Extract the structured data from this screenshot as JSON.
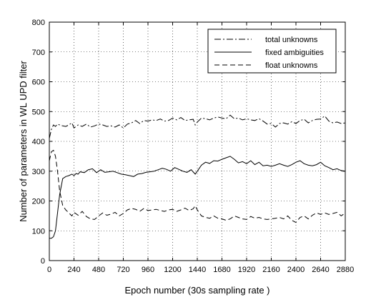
{
  "chart_data": {
    "type": "line",
    "xlabel": "Epoch number (30s sampling rate )",
    "ylabel": "Number of parameters in WL UPD filter",
    "xlim": [
      0,
      2880
    ],
    "ylim": [
      0,
      800
    ],
    "xticks": [
      0,
      240,
      480,
      720,
      960,
      1200,
      1440,
      1680,
      1920,
      2160,
      2400,
      2640,
      2880
    ],
    "yticks": [
      0,
      100,
      200,
      300,
      400,
      500,
      600,
      700,
      800
    ],
    "grid": true,
    "legend_position": "top-right",
    "series": [
      {
        "name": "total unknowns",
        "style": "dashdot",
        "color": "#000000",
        "x": [
          0,
          20,
          40,
          60,
          80,
          100,
          130,
          160,
          190,
          220,
          240,
          280,
          320,
          360,
          400,
          440,
          480,
          520,
          560,
          600,
          640,
          680,
          720,
          760,
          800,
          840,
          880,
          920,
          960,
          1000,
          1040,
          1080,
          1120,
          1160,
          1200,
          1240,
          1280,
          1320,
          1360,
          1400,
          1420,
          1440,
          1480,
          1520,
          1560,
          1600,
          1640,
          1680,
          1720,
          1760,
          1800,
          1840,
          1880,
          1920,
          1960,
          2000,
          2040,
          2080,
          2120,
          2160,
          2200,
          2240,
          2280,
          2320,
          2360,
          2400,
          2440,
          2480,
          2520,
          2560,
          2600,
          2640,
          2680,
          2720,
          2760,
          2800,
          2840,
          2880
        ],
        "y": [
          410,
          440,
          455,
          450,
          458,
          455,
          452,
          450,
          455,
          462,
          445,
          455,
          450,
          458,
          448,
          452,
          458,
          455,
          450,
          452,
          448,
          455,
          445,
          458,
          462,
          470,
          460,
          470,
          468,
          472,
          470,
          475,
          468,
          470,
          478,
          472,
          480,
          470,
          472,
          474,
          455,
          465,
          478,
          476,
          472,
          478,
          482,
          478,
          476,
          488,
          476,
          478,
          472,
          476,
          472,
          470,
          476,
          468,
          458,
          460,
          448,
          460,
          462,
          458,
          466,
          460,
          470,
          474,
          462,
          470,
          474,
          475,
          485,
          468,
          462,
          465,
          460,
          462
        ]
      },
      {
        "name": "fixed ambiguities",
        "style": "solid",
        "color": "#000000",
        "x": [
          0,
          20,
          40,
          60,
          80,
          100,
          130,
          160,
          190,
          220,
          240,
          260,
          280,
          300,
          340,
          380,
          420,
          460,
          500,
          540,
          580,
          620,
          660,
          700,
          740,
          780,
          820,
          860,
          900,
          940,
          980,
          1020,
          1060,
          1100,
          1140,
          1180,
          1220,
          1260,
          1300,
          1340,
          1380,
          1420,
          1440,
          1480,
          1520,
          1560,
          1600,
          1640,
          1680,
          1720,
          1760,
          1800,
          1840,
          1880,
          1920,
          1960,
          2000,
          2040,
          2080,
          2120,
          2160,
          2200,
          2240,
          2280,
          2320,
          2360,
          2400,
          2440,
          2480,
          2520,
          2560,
          2600,
          2640,
          2680,
          2720,
          2760,
          2800,
          2840,
          2880
        ],
        "y": [
          75,
          75,
          80,
          100,
          160,
          220,
          275,
          282,
          285,
          290,
          285,
          292,
          290,
          298,
          295,
          305,
          308,
          295,
          305,
          296,
          298,
          300,
          295,
          290,
          288,
          285,
          282,
          290,
          292,
          296,
          298,
          300,
          305,
          310,
          306,
          300,
          312,
          306,
          300,
          296,
          305,
          290,
          300,
          320,
          330,
          326,
          335,
          334,
          340,
          345,
          350,
          340,
          328,
          332,
          325,
          335,
          322,
          330,
          318,
          320,
          316,
          320,
          325,
          320,
          316,
          322,
          330,
          335,
          325,
          320,
          318,
          322,
          330,
          318,
          312,
          305,
          308,
          302,
          300
        ]
      },
      {
        "name": "float unknowns",
        "style": "dashed",
        "color": "#000000",
        "x": [
          0,
          20,
          40,
          60,
          80,
          100,
          130,
          160,
          190,
          220,
          240,
          280,
          320,
          360,
          400,
          440,
          480,
          520,
          560,
          600,
          640,
          680,
          720,
          760,
          800,
          840,
          880,
          920,
          960,
          1000,
          1040,
          1080,
          1120,
          1160,
          1200,
          1240,
          1280,
          1320,
          1360,
          1400,
          1420,
          1440,
          1480,
          1520,
          1560,
          1600,
          1640,
          1680,
          1720,
          1760,
          1800,
          1840,
          1880,
          1920,
          1960,
          2000,
          2040,
          2080,
          2120,
          2160,
          2200,
          2240,
          2280,
          2320,
          2360,
          2400,
          2440,
          2480,
          2520,
          2560,
          2600,
          2640,
          2680,
          2720,
          2760,
          2800,
          2840,
          2880
        ],
        "y": [
          335,
          365,
          370,
          350,
          300,
          235,
          185,
          170,
          160,
          150,
          162,
          152,
          165,
          148,
          140,
          138,
          150,
          160,
          152,
          156,
          162,
          150,
          158,
          170,
          175,
          172,
          165,
          175,
          168,
          170,
          172,
          168,
          165,
          170,
          172,
          165,
          170,
          176,
          168,
          174,
          184,
          170,
          150,
          145,
          142,
          150,
          142,
          140,
          135,
          140,
          150,
          145,
          140,
          138,
          148,
          142,
          145,
          140,
          138,
          140,
          142,
          145,
          140,
          150,
          135,
          128,
          145,
          150,
          140,
          152,
          160,
          155,
          160,
          155,
          158,
          162,
          150,
          160
        ]
      }
    ]
  }
}
